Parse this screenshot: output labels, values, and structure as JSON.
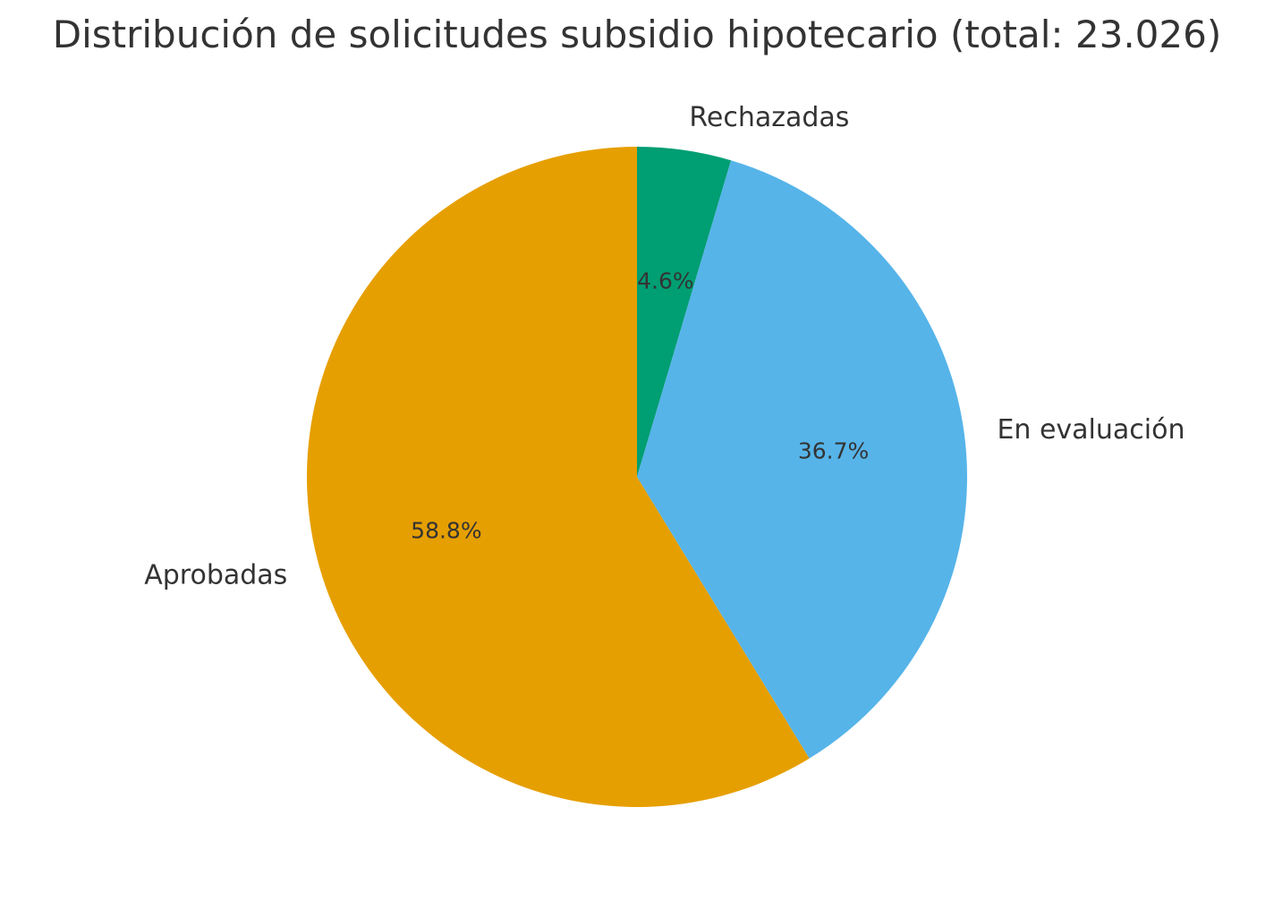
{
  "chart_data": {
    "type": "pie",
    "title": "Distribución de solicitudes subsidio hipotecario (total: 23.026)",
    "start": "top",
    "direction": "clockwise",
    "slices": [
      {
        "label": "Rechazadas",
        "value": 4.6,
        "pct_label": "4.6%",
        "color": "#009E73"
      },
      {
        "label": "En evaluación",
        "value": 36.7,
        "pct_label": "36.7%",
        "color": "#56B4E9"
      },
      {
        "label": "Aprobadas",
        "value": 58.8,
        "pct_label": "58.8%",
        "color": "#E69F00"
      }
    ]
  }
}
